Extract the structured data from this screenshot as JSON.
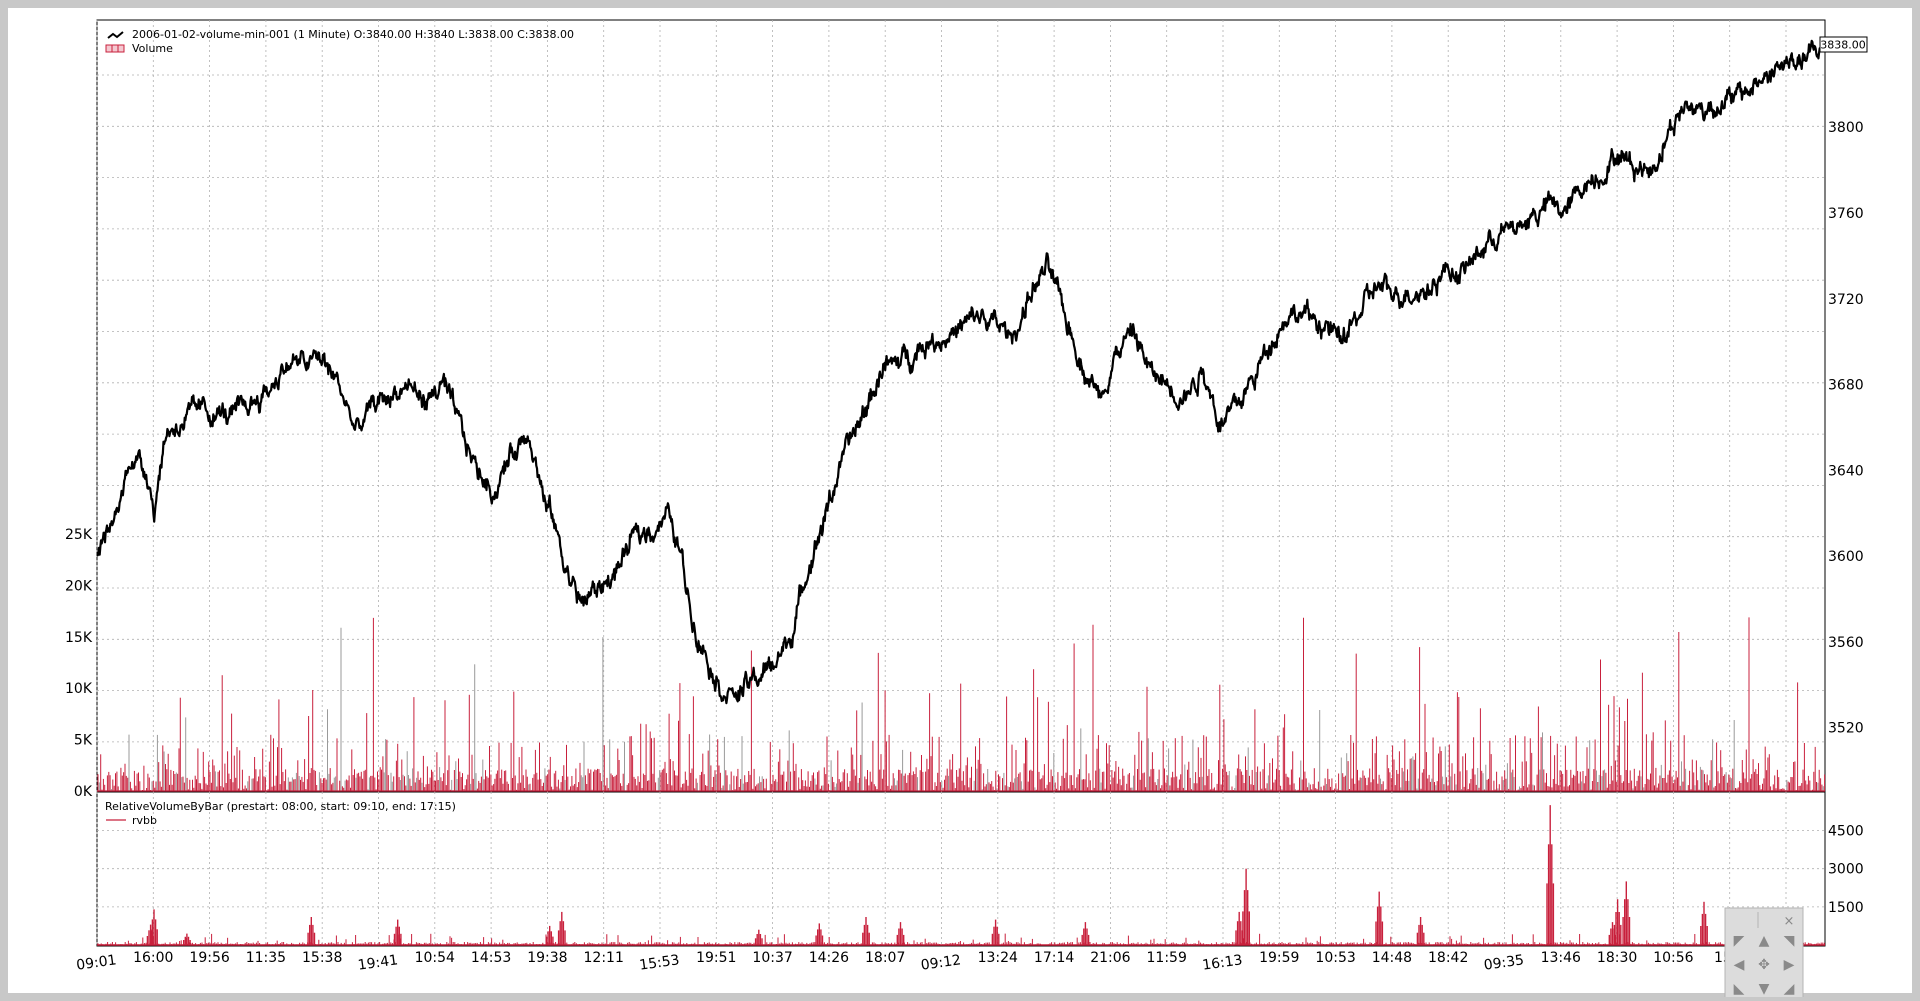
{
  "chart_data": [
    {
      "type": "line",
      "legend": [
        {
          "label": "2006-01-02-volume-min-001 (1 Minute) O:3840.00 H:3840 L:3838.00 C:3838.00",
          "icon": "line-icon"
        },
        {
          "label": "Volume",
          "icon": "volume-bar-icon"
        }
      ],
      "price_axis": {
        "ticks": [
          "3520",
          "3560",
          "3600",
          "3640",
          "3680",
          "3720",
          "3760",
          "3800"
        ],
        "ylim": [
          3490,
          3850
        ],
        "position": "right"
      },
      "last_price_label": "3838.00",
      "volume_axis": {
        "ticks": [
          "0K",
          "5K",
          "10K",
          "15K",
          "20K",
          "25K"
        ],
        "ylim": [
          0,
          25000
        ],
        "position": "left"
      },
      "x_tick_labels": [
        "09:01",
        "16:00",
        "19:56",
        "11:35",
        "15:38",
        "19:41",
        "10:54",
        "14:53",
        "19:38",
        "12:11",
        "15:53",
        "19:51",
        "10:37",
        "14:26",
        "18:07",
        "09:12",
        "13:24",
        "17:14",
        "21:06",
        "11:59",
        "16:13",
        "19:59",
        "10:53",
        "14:48",
        "18:42",
        "09:35",
        "13:46",
        "18:30",
        "10:56",
        "15:0"
      ],
      "price_series": {
        "name": "2006-01-02-volume-min-001",
        "color": "#000000",
        "anchors_x_fraction": [
          0,
          0.01,
          0.02,
          0.03,
          0.033,
          0.04,
          0.06,
          0.08,
          0.1,
          0.11,
          0.12,
          0.13,
          0.14,
          0.15,
          0.16,
          0.17,
          0.18,
          0.19,
          0.2,
          0.21,
          0.22,
          0.23,
          0.24,
          0.25,
          0.26,
          0.264,
          0.27,
          0.28,
          0.3,
          0.31,
          0.32,
          0.33,
          0.338,
          0.345,
          0.36,
          0.37,
          0.38,
          0.39,
          0.4,
          0.405,
          0.41,
          0.42,
          0.43,
          0.44,
          0.45,
          0.455,
          0.46,
          0.47,
          0.48,
          0.49,
          0.5,
          0.51,
          0.52,
          0.53,
          0.54,
          0.55,
          0.56,
          0.57,
          0.58,
          0.59,
          0.6,
          0.61,
          0.62,
          0.63,
          0.64,
          0.65,
          0.66,
          0.67,
          0.68,
          0.69,
          0.7,
          0.71,
          0.72,
          0.73,
          0.74,
          0.75,
          0.76,
          0.77,
          0.78,
          0.79,
          0.8,
          0.81,
          0.82,
          0.83,
          0.84,
          0.85,
          0.86,
          0.87,
          0.88,
          0.89,
          0.9,
          0.91,
          0.92,
          0.93,
          0.94,
          0.95,
          0.96,
          0.97,
          0.98,
          0.99,
          1.0
        ],
        "anchors_y": [
          3602,
          3615,
          3648,
          3638,
          3622,
          3658,
          3668,
          3665,
          3678,
          3690,
          3690,
          3692,
          3680,
          3658,
          3670,
          3675,
          3680,
          3672,
          3680,
          3660,
          3640,
          3630,
          3648,
          3660,
          3622,
          3618,
          3598,
          3578,
          3592,
          3608,
          3612,
          3620,
          3600,
          3570,
          3540,
          3535,
          3542,
          3548,
          3560,
          3572,
          3592,
          3615,
          3642,
          3660,
          3678,
          3690,
          3688,
          3694,
          3700,
          3702,
          3706,
          3712,
          3708,
          3702,
          3722,
          3735,
          3712,
          3690,
          3675,
          3695,
          3705,
          3685,
          3680,
          3675,
          3688,
          3662,
          3670,
          3684,
          3702,
          3714,
          3712,
          3708,
          3700,
          3712,
          3726,
          3722,
          3724,
          3724,
          3734,
          3732,
          3742,
          3750,
          3752,
          3758,
          3764,
          3760,
          3774,
          3778,
          3788,
          3782,
          3780,
          3800,
          3810,
          3808,
          3812,
          3814,
          3820,
          3826,
          3830,
          3832,
          3838
        ]
      },
      "volume_series": {
        "name": "Volume",
        "color": "#c8203c"
      }
    },
    {
      "type": "bar",
      "title": "RelativeVolumeByBar (prestart: 08:00, start: 09:10, end: 17:15)",
      "legend": [
        {
          "label": "rvbb",
          "color": "#c8203c"
        }
      ],
      "y_axis": {
        "ticks": [
          "1500",
          "3000",
          "4500"
        ],
        "ylim": [
          0,
          5700
        ],
        "position": "right"
      },
      "spikes": [
        {
          "x_fraction": 0.031,
          "value": 800
        },
        {
          "x_fraction": 0.033,
          "value": 1400
        },
        {
          "x_fraction": 0.052,
          "value": 450
        },
        {
          "x_fraction": 0.124,
          "value": 1100
        },
        {
          "x_fraction": 0.174,
          "value": 1000
        },
        {
          "x_fraction": 0.262,
          "value": 750
        },
        {
          "x_fraction": 0.269,
          "value": 1300
        },
        {
          "x_fraction": 0.383,
          "value": 600
        },
        {
          "x_fraction": 0.418,
          "value": 850
        },
        {
          "x_fraction": 0.445,
          "value": 1100
        },
        {
          "x_fraction": 0.465,
          "value": 900
        },
        {
          "x_fraction": 0.52,
          "value": 1000
        },
        {
          "x_fraction": 0.572,
          "value": 900
        },
        {
          "x_fraction": 0.665,
          "value": 3000
        },
        {
          "x_fraction": 0.661,
          "value": 1300
        },
        {
          "x_fraction": 0.742,
          "value": 2100
        },
        {
          "x_fraction": 0.766,
          "value": 1100
        },
        {
          "x_fraction": 0.841,
          "value": 5500
        },
        {
          "x_fraction": 0.885,
          "value": 2500
        },
        {
          "x_fraction": 0.88,
          "value": 1800
        },
        {
          "x_fraction": 0.877,
          "value": 900
        },
        {
          "x_fraction": 0.93,
          "value": 1700
        },
        {
          "x_fraction": 0.966,
          "value": 1300
        }
      ]
    }
  ],
  "navigator": {
    "close_label": "×",
    "icons": [
      "arrow-up-left-icon",
      "arrow-up-icon",
      "arrow-up-right-icon",
      "arrow-left-icon",
      "move-icon",
      "arrow-right-icon",
      "arrow-down-left-icon",
      "arrow-down-icon",
      "arrow-down-right-icon"
    ]
  },
  "colors": {
    "price_line": "#000000",
    "volume": "#c8203c",
    "background": "#ffffff",
    "frame": "#c8c8c8",
    "grid": "#b0b0b0"
  }
}
